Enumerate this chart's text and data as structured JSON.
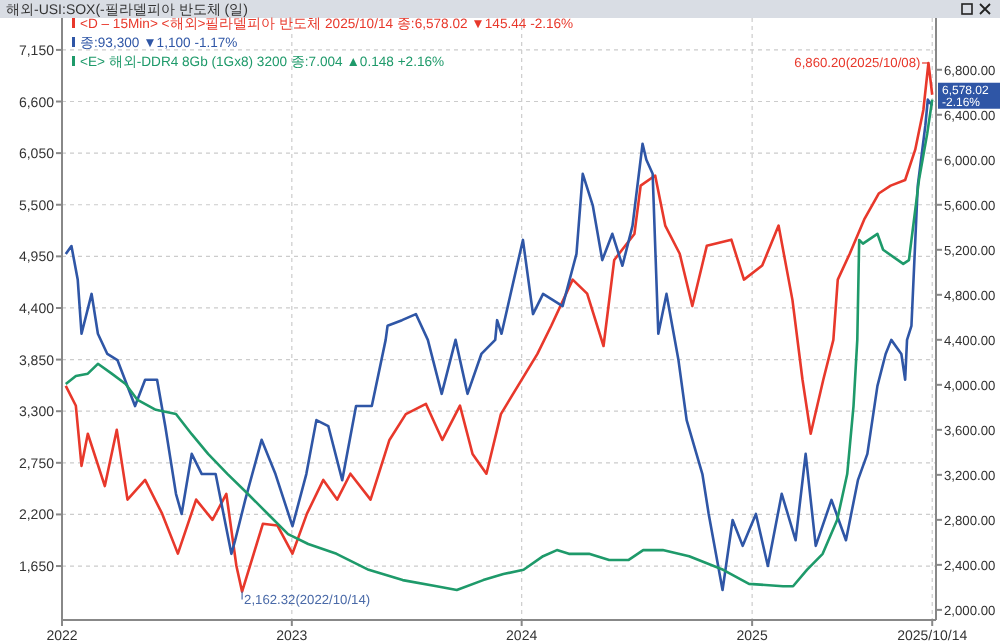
{
  "chart_data": {
    "type": "line",
    "title": "해외-USI:SOX(-필라델피아 반도체 (일)",
    "xlim": [
      "2022-01-01",
      "2025-10-20"
    ],
    "xticks": [
      {
        "value": "2022-01-01",
        "label": "2022"
      },
      {
        "value": "2023-01-01",
        "label": "2023"
      },
      {
        "value": "2024-01-01",
        "label": "2024"
      },
      {
        "value": "2025-01-01",
        "label": "2025"
      },
      {
        "value": "2025-10-14",
        "label": "2025/10/14"
      }
    ],
    "ylim": [
      1075,
      7490
    ],
    "yticks": [
      {
        "value": 1650,
        "label": "1,650"
      },
      {
        "value": 2200,
        "label": "2,200"
      },
      {
        "value": 2750,
        "label": "2,750"
      },
      {
        "value": 3300,
        "label": "3,300"
      },
      {
        "value": 3850,
        "label": "3,850"
      },
      {
        "value": 4400,
        "label": "4,400"
      },
      {
        "value": 4950,
        "label": "4,950"
      },
      {
        "value": 5500,
        "label": "5,500"
      },
      {
        "value": 6050,
        "label": "6,050"
      },
      {
        "value": 6600,
        "label": "6,600"
      },
      {
        "value": 7150,
        "label": "7,150"
      }
    ],
    "y2lim": [
      1910,
      7260
    ],
    "y2ticks": [
      {
        "value": 2000,
        "label": "2,000.00"
      },
      {
        "value": 2400,
        "label": "2,400.00"
      },
      {
        "value": 2800,
        "label": "2,800.00"
      },
      {
        "value": 3200,
        "label": "3,200.00"
      },
      {
        "value": 3600,
        "label": "3,600.00"
      },
      {
        "value": 4000,
        "label": "4,000.00"
      },
      {
        "value": 4400,
        "label": "4,400.00"
      },
      {
        "value": 4800,
        "label": "4,800.00"
      },
      {
        "value": 5200,
        "label": "5,200.00"
      },
      {
        "value": 5600,
        "label": "5,600.00"
      },
      {
        "value": 6000,
        "label": "6,000.00"
      },
      {
        "value": 6400,
        "label": "6,400.00"
      },
      {
        "value": 6800,
        "label": "6,800.00"
      }
    ],
    "grid": true,
    "legend": "top left",
    "series": [
      {
        "name": "<D – 15Min> <해외>필라델피아 반도체 2025/10/14 종:6,578.02 ▼145.44 -2.16%",
        "color": "#e8382b",
        "axis": "y2",
        "x": [
          "2022-01-07",
          "2022-01-23",
          "2022-02-01",
          "2022-02-11",
          "2022-03-10",
          "2022-03-29",
          "2022-04-15",
          "2022-05-13",
          "2022-06-09",
          "2022-07-04",
          "2022-08-02",
          "2022-08-28",
          "2022-09-19",
          "2022-10-05",
          "2022-10-14",
          "2022-11-16",
          "2022-12-09",
          "2023-01-02",
          "2023-01-25",
          "2023-02-20",
          "2023-03-14",
          "2023-04-04",
          "2023-05-06",
          "2023-06-05",
          "2023-07-01",
          "2023-08-02",
          "2023-08-28",
          "2023-09-25",
          "2023-10-15",
          "2023-11-06",
          "2023-11-29",
          "2024-01-26",
          "2024-02-17",
          "2024-03-22",
          "2024-04-14",
          "2024-05-10",
          "2024-05-27",
          "2024-06-28",
          "2024-07-08",
          "2024-07-31",
          "2024-08-16",
          "2024-09-08",
          "2024-09-28",
          "2024-10-21",
          "2024-11-29",
          "2024-12-19",
          "2025-01-17",
          "2025-02-12",
          "2025-02-28",
          "2025-03-06",
          "2025-03-22",
          "2025-04-04",
          "2025-04-24",
          "2025-05-10",
          "2025-05-17",
          "2025-06-05",
          "2025-06-28",
          "2025-07-21",
          "2025-08-09",
          "2025-09-01",
          "2025-09-17",
          "2025-09-30",
          "2025-10-08",
          "2025-10-14"
        ],
        "values": [
          3990,
          3814,
          3280,
          3565,
          3100,
          3600,
          2980,
          3155,
          2855,
          2500,
          2980,
          2800,
          3030,
          2390,
          2162.32,
          2765,
          2750,
          2500,
          2855,
          3155,
          2980,
          3210,
          2980,
          3510,
          3740,
          3830,
          3510,
          3815,
          3385,
          3210,
          3740,
          4275,
          4525,
          4935,
          4810,
          4345,
          5110,
          5340,
          5770,
          5860,
          5415,
          5165,
          4700,
          5235,
          5290,
          4935,
          5060,
          5415,
          4935,
          4755,
          4045,
          3565,
          4045,
          4400,
          4935,
          5165,
          5470,
          5700,
          5770,
          5820,
          6090,
          6445,
          6860.2,
          6578.02
        ]
      },
      {
        "name": "종:93,300 ▼1,100 -1.17%",
        "color": "#2f56a6",
        "x": [
          "2022-01-07",
          "2022-01-16",
          "2022-01-26",
          "2022-02-01",
          "2022-02-17",
          "2022-02-27",
          "2022-03-14",
          "2022-03-30",
          "2022-04-27",
          "2022-05-13",
          "2022-06-01",
          "2022-06-14",
          "2022-07-01",
          "2022-07-10",
          "2022-07-26",
          "2022-08-11",
          "2022-09-02",
          "2022-09-27",
          "2022-10-03",
          "2022-10-19",
          "2022-11-14",
          "2022-12-06",
          "2023-01-02",
          "2023-01-24",
          "2023-02-09",
          "2023-02-28",
          "2023-03-22",
          "2023-04-13",
          "2023-05-08",
          "2023-05-30",
          "2023-06-02",
          "2023-06-25",
          "2023-07-17",
          "2023-08-05",
          "2023-08-27",
          "2023-09-18",
          "2023-10-07",
          "2023-10-29",
          "2023-11-20",
          "2023-11-23",
          "2023-11-30",
          "2024-01-03",
          "2024-01-19",
          "2024-02-04",
          "2024-03-06",
          "2024-03-28",
          "2024-04-07",
          "2024-04-23",
          "2024-05-08",
          "2024-05-24",
          "2024-06-09",
          "2024-06-25",
          "2024-07-11",
          "2024-07-17",
          "2024-07-27",
          "2024-08-05",
          "2024-08-18",
          "2024-09-06",
          "2024-09-19",
          "2024-10-14",
          "2024-10-24",
          "2024-11-15",
          "2024-12-01",
          "2024-12-17",
          "2025-01-07",
          "2025-01-26",
          "2025-02-17",
          "2025-03-11",
          "2025-03-27",
          "2025-04-12",
          "2025-05-07",
          "2025-05-30",
          "2025-06-18",
          "2025-07-03",
          "2025-07-19",
          "2025-08-01",
          "2025-08-10",
          "2025-08-26",
          "2025-09-01",
          "2025-09-04",
          "2025-09-11",
          "2025-09-21",
          "2025-10-03",
          "2025-10-07",
          "2025-10-14"
        ],
        "values": [
          4975,
          5060,
          4700,
          4125,
          4550,
          4125,
          3910,
          3845,
          3355,
          3635,
          3635,
          3140,
          2420,
          2205,
          2845,
          2630,
          2630,
          1780,
          1925,
          2355,
          2995,
          2630,
          2075,
          2630,
          3205,
          3140,
          2565,
          3355,
          3355,
          4060,
          4210,
          4270,
          4335,
          4060,
          3485,
          4060,
          3485,
          3910,
          4060,
          4270,
          4125,
          5125,
          4335,
          4550,
          4420,
          4975,
          5830,
          5490,
          4910,
          5190,
          4850,
          5275,
          6150,
          5980,
          5830,
          4125,
          4550,
          3845,
          3205,
          2630,
          2205,
          1395,
          2140,
          1865,
          2205,
          1650,
          2420,
          1925,
          2845,
          1865,
          2355,
          1925,
          2565,
          2845,
          3570,
          3910,
          4060,
          3910,
          3635,
          4060,
          4210,
          5700,
          6340,
          6620,
          6555
        ]
      },
      {
        "name": "<E> 해외-DDR4 8Gb (1Gx8) 3200 종:7.004 ▲0.148 +2.16%",
        "color": "#1e9a6a",
        "x": [
          "2022-01-07",
          "2022-01-23",
          "2022-02-11",
          "2022-02-27",
          "2022-03-21",
          "2022-04-12",
          "2022-05-01",
          "2022-05-30",
          "2022-07-01",
          "2022-07-26",
          "2022-08-21",
          "2022-09-21",
          "2022-10-23",
          "2022-11-24",
          "2022-12-26",
          "2023-01-27",
          "2023-03-13",
          "2023-05-03",
          "2023-06-26",
          "2023-08-19",
          "2023-09-20",
          "2023-11-01",
          "2023-12-03",
          "2024-01-04",
          "2024-02-04",
          "2024-02-26",
          "2024-03-16",
          "2024-04-17",
          "2024-05-19",
          "2024-06-19",
          "2024-07-12",
          "2024-08-12",
          "2024-09-23",
          "2024-11-16",
          "2024-12-27",
          "2025-02-19",
          "2025-03-07",
          "2025-03-29",
          "2025-04-23",
          "2025-05-16",
          "2025-06-01",
          "2025-06-11",
          "2025-06-17",
          "2025-06-20",
          "2025-06-26",
          "2025-07-19",
          "2025-07-28",
          "2025-08-29",
          "2025-09-07",
          "2025-09-23",
          "2025-10-06",
          "2025-10-14"
        ],
        "values": [
          3590,
          3675,
          3700,
          3805,
          3700,
          3590,
          3420,
          3315,
          3270,
          3055,
          2845,
          2630,
          2420,
          2205,
          1990,
          1885,
          1780,
          1610,
          1500,
          1435,
          1395,
          1500,
          1565,
          1610,
          1755,
          1820,
          1780,
          1780,
          1715,
          1715,
          1820,
          1820,
          1755,
          1610,
          1460,
          1435,
          1435,
          1610,
          1780,
          2140,
          2630,
          3355,
          4060,
          5125,
          5085,
          5190,
          5020,
          4870,
          4910,
          5765,
          6255,
          6620
        ]
      }
    ],
    "annotations": [
      "6,860.20(2025/10/08)",
      "2,162.32(2022/10/14)",
      "6,578.02 -2.16%"
    ]
  }
}
